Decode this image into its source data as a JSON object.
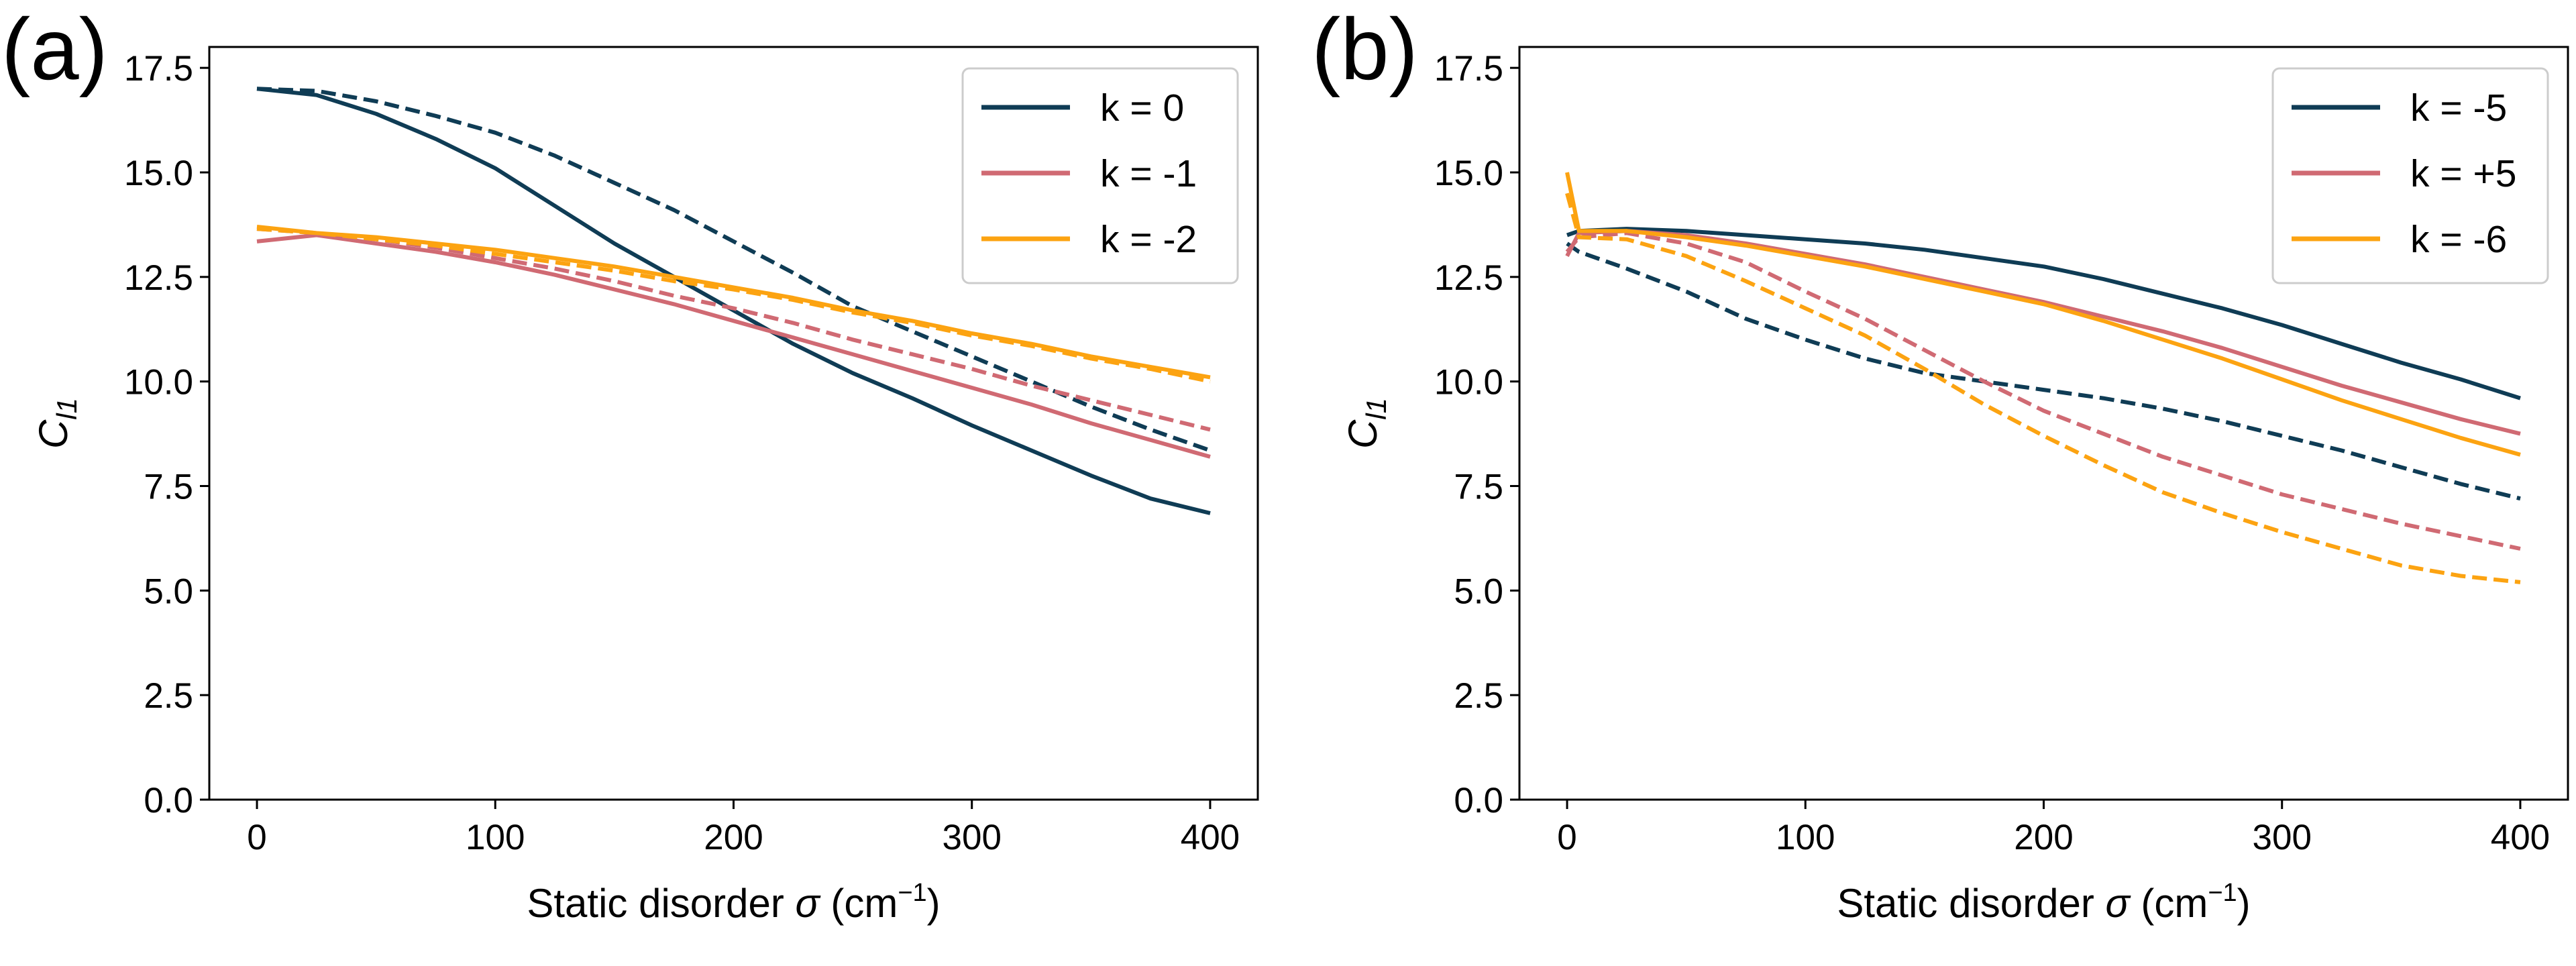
{
  "figure": {
    "colors": {
      "k0": "#0f3c55",
      "k1": "#d06a73",
      "k2": "#fca311"
    },
    "panels": [
      {
        "label": "(a)"
      },
      {
        "label": "(b)"
      }
    ]
  },
  "chart_data": [
    {
      "type": "line",
      "panel": "(a)",
      "title": "",
      "xlabel": "Static disorder σ (cm⁻¹)",
      "xlabel_parts": {
        "main": "Static disorder ",
        "sigma": "σ",
        "unit_open": " (cm",
        "sup": "−1",
        "close": ")"
      },
      "ylabel": "C_l1",
      "ylabel_parts": {
        "main": "C",
        "sub": "l1"
      },
      "xlim": [
        -20,
        420
      ],
      "ylim": [
        0,
        18
      ],
      "xticks": [
        0,
        100,
        200,
        300,
        400
      ],
      "xtick_labels": [
        "0",
        "100",
        "200",
        "300",
        "400"
      ],
      "yticks": [
        0,
        2.5,
        5,
        7.5,
        10,
        12.5,
        15,
        17.5
      ],
      "ytick_labels": [
        "0.0",
        "2.5",
        "5.0",
        "7.5",
        "10.0",
        "12.5",
        "15.0",
        "17.5"
      ],
      "grid": false,
      "legend_position": "top-right",
      "legend": [
        "k = 0",
        "k = -1",
        "k = -2"
      ],
      "line_styles": [
        "solid = one variant",
        "dashed = other variant"
      ],
      "x": [
        0,
        25,
        50,
        75,
        100,
        125,
        150,
        175,
        200,
        225,
        250,
        275,
        300,
        325,
        350,
        375,
        400
      ],
      "series": [
        {
          "name": "k = 0",
          "style": "solid",
          "color_key": "k0",
          "values": [
            17.0,
            16.85,
            16.4,
            15.8,
            15.1,
            14.2,
            13.3,
            12.5,
            11.7,
            10.9,
            10.2,
            9.6,
            8.95,
            8.35,
            7.75,
            7.2,
            6.85
          ]
        },
        {
          "name": "k = 0",
          "style": "dashed",
          "color_key": "k0",
          "values": [
            17.0,
            16.95,
            16.7,
            16.35,
            15.95,
            15.4,
            14.75,
            14.1,
            13.35,
            12.6,
            11.8,
            11.2,
            10.6,
            10.0,
            9.4,
            8.85,
            8.35
          ]
        },
        {
          "name": "k = -1",
          "style": "solid",
          "color_key": "k1",
          "values": [
            13.35,
            13.5,
            13.3,
            13.1,
            12.85,
            12.55,
            12.2,
            11.85,
            11.45,
            11.05,
            10.65,
            10.25,
            9.85,
            9.45,
            9.0,
            8.6,
            8.2
          ]
        },
        {
          "name": "k = -1",
          "style": "dashed",
          "color_key": "k1",
          "values": [
            13.65,
            13.55,
            13.4,
            13.2,
            12.95,
            12.7,
            12.4,
            12.05,
            11.75,
            11.4,
            11.0,
            10.65,
            10.3,
            9.9,
            9.55,
            9.2,
            8.85
          ]
        },
        {
          "name": "k = -2",
          "style": "solid",
          "color_key": "k2",
          "values": [
            13.7,
            13.55,
            13.45,
            13.3,
            13.15,
            12.95,
            12.75,
            12.5,
            12.25,
            12.0,
            11.7,
            11.45,
            11.15,
            10.9,
            10.6,
            10.35,
            10.1
          ]
        },
        {
          "name": "k = -2",
          "style": "dashed",
          "color_key": "k2",
          "values": [
            13.65,
            13.55,
            13.4,
            13.25,
            13.05,
            12.85,
            12.65,
            12.4,
            12.2,
            11.95,
            11.65,
            11.4,
            11.1,
            10.85,
            10.55,
            10.3,
            10.0
          ]
        }
      ]
    },
    {
      "type": "line",
      "panel": "(b)",
      "title": "",
      "xlabel": "Static disorder σ (cm⁻¹)",
      "xlabel_parts": {
        "main": "Static disorder ",
        "sigma": "σ",
        "unit_open": " (cm",
        "sup": "−1",
        "close": ")"
      },
      "ylabel": "C_l1",
      "ylabel_parts": {
        "main": "C",
        "sub": "l1"
      },
      "xlim": [
        -20,
        420
      ],
      "ylim": [
        0,
        18
      ],
      "xticks": [
        0,
        100,
        200,
        300,
        400
      ],
      "xtick_labels": [
        "0",
        "100",
        "200",
        "300",
        "400"
      ],
      "yticks": [
        0,
        2.5,
        5,
        7.5,
        10,
        12.5,
        15,
        17.5
      ],
      "ytick_labels": [
        "0.0",
        "2.5",
        "5.0",
        "7.5",
        "10.0",
        "12.5",
        "15.0",
        "17.5"
      ],
      "grid": false,
      "legend_position": "top-right",
      "legend": [
        "k = -5",
        "k = +5",
        "k = -6"
      ],
      "x": [
        0,
        5,
        25,
        50,
        75,
        100,
        125,
        150,
        175,
        200,
        225,
        250,
        275,
        300,
        325,
        350,
        375,
        400
      ],
      "series": [
        {
          "name": "k = -5",
          "style": "solid",
          "color_key": "k0",
          "values": [
            13.5,
            13.6,
            13.65,
            13.6,
            13.5,
            13.4,
            13.3,
            13.15,
            12.95,
            12.75,
            12.45,
            12.1,
            11.75,
            11.35,
            10.9,
            10.45,
            10.05,
            9.6
          ]
        },
        {
          "name": "k = -5",
          "style": "dashed",
          "color_key": "k0",
          "values": [
            13.3,
            13.1,
            12.7,
            12.15,
            11.5,
            11.0,
            10.55,
            10.2,
            10.0,
            9.8,
            9.6,
            9.35,
            9.05,
            8.7,
            8.35,
            7.95,
            7.55,
            7.2
          ]
        },
        {
          "name": "k = +5",
          "style": "solid",
          "color_key": "k1",
          "values": [
            13.0,
            13.55,
            13.6,
            13.5,
            13.3,
            13.05,
            12.8,
            12.5,
            12.2,
            11.9,
            11.55,
            11.2,
            10.8,
            10.35,
            9.9,
            9.5,
            9.1,
            8.75
          ]
        },
        {
          "name": "k = +5",
          "style": "dashed",
          "color_key": "k1",
          "values": [
            13.1,
            13.45,
            13.55,
            13.3,
            12.85,
            12.15,
            11.5,
            10.75,
            10.0,
            9.3,
            8.75,
            8.2,
            7.75,
            7.3,
            6.95,
            6.6,
            6.3,
            6.0
          ]
        },
        {
          "name": "k = -6",
          "style": "solid",
          "color_key": "k2",
          "values": [
            15.0,
            13.6,
            13.6,
            13.45,
            13.25,
            13.0,
            12.75,
            12.45,
            12.15,
            11.85,
            11.45,
            11.0,
            10.55,
            10.05,
            9.55,
            9.1,
            8.65,
            8.25
          ]
        },
        {
          "name": "k = -6",
          "style": "dashed",
          "color_key": "k2",
          "values": [
            14.5,
            13.45,
            13.4,
            13.0,
            12.4,
            11.75,
            11.1,
            10.3,
            9.45,
            8.7,
            8.0,
            7.35,
            6.85,
            6.4,
            6.0,
            5.6,
            5.35,
            5.2
          ]
        }
      ]
    }
  ]
}
